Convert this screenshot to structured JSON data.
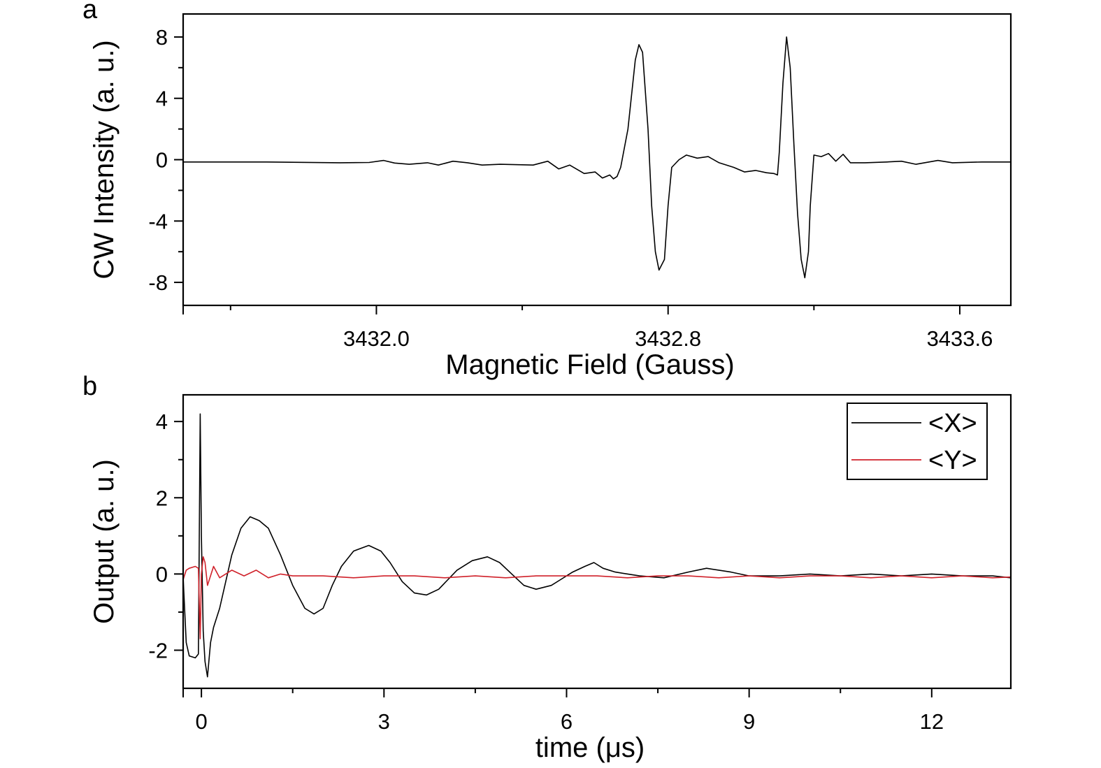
{
  "figure": {
    "panels": [
      "a",
      "b"
    ]
  },
  "chart_data": [
    {
      "panel": "a",
      "type": "line",
      "xlabel": "Magnetic Field (Gauss)",
      "ylabel": "CW Intensity (a. u.)",
      "xlim": [
        3431.47,
        3433.74
      ],
      "ylim": [
        -9.5,
        9.5
      ],
      "xticks": [
        3432.0,
        3432.8,
        3433.6
      ],
      "xtick_labels": [
        "3432.0",
        "3432.8",
        "3433.6"
      ],
      "xminor": [
        3431.6,
        3432.4,
        3433.2
      ],
      "yticks": [
        8,
        4,
        0,
        -4,
        -8
      ],
      "ytick_labels": [
        "8",
        "4",
        "0",
        "-4",
        "-8"
      ],
      "yminor": [
        6,
        2,
        -2,
        -6
      ],
      "grid": false,
      "series": [
        {
          "color": "#000000",
          "points": [
            [
              3431.47,
              -0.15
            ],
            [
              3431.7,
              -0.15
            ],
            [
              3431.9,
              -0.2
            ],
            [
              3431.98,
              -0.18
            ],
            [
              3432.02,
              -0.05
            ],
            [
              3432.05,
              -0.22
            ],
            [
              3432.09,
              -0.3
            ],
            [
              3432.14,
              -0.2
            ],
            [
              3432.17,
              -0.35
            ],
            [
              3432.21,
              -0.1
            ],
            [
              3432.25,
              -0.2
            ],
            [
              3432.29,
              -0.35
            ],
            [
              3432.34,
              -0.3
            ],
            [
              3432.43,
              -0.35
            ],
            [
              3432.47,
              -0.1
            ],
            [
              3432.5,
              -0.6
            ],
            [
              3432.53,
              -0.35
            ],
            [
              3432.57,
              -0.9
            ],
            [
              3432.6,
              -0.8
            ],
            [
              3432.62,
              -1.2
            ],
            [
              3432.64,
              -1.0
            ],
            [
              3432.65,
              -1.25
            ],
            [
              3432.66,
              -1.1
            ],
            [
              3432.67,
              -0.5
            ],
            [
              3432.69,
              2.0
            ],
            [
              3432.71,
              6.5
            ],
            [
              3432.72,
              7.5
            ],
            [
              3432.73,
              7.0
            ],
            [
              3432.745,
              2.0
            ],
            [
              3432.755,
              -3.0
            ],
            [
              3432.765,
              -6.0
            ],
            [
              3432.775,
              -7.2
            ],
            [
              3432.79,
              -6.5
            ],
            [
              3432.8,
              -3.0
            ],
            [
              3432.81,
              -0.5
            ],
            [
              3432.83,
              0.0
            ],
            [
              3432.85,
              0.3
            ],
            [
              3432.88,
              0.1
            ],
            [
              3432.91,
              0.2
            ],
            [
              3432.94,
              -0.2
            ],
            [
              3432.98,
              -0.5
            ],
            [
              3433.01,
              -0.8
            ],
            [
              3433.04,
              -0.7
            ],
            [
              3433.07,
              -0.85
            ],
            [
              3433.09,
              -0.9
            ],
            [
              3433.1,
              -1.0
            ],
            [
              3433.105,
              0.5
            ],
            [
              3433.115,
              5.0
            ],
            [
              3433.125,
              8.0
            ],
            [
              3433.135,
              6.0
            ],
            [
              3433.145,
              1.0
            ],
            [
              3433.155,
              -3.5
            ],
            [
              3433.165,
              -6.5
            ],
            [
              3433.175,
              -7.7
            ],
            [
              3433.185,
              -6.0
            ],
            [
              3433.19,
              -3.0
            ],
            [
              3433.2,
              0.3
            ],
            [
              3433.22,
              0.2
            ],
            [
              3433.24,
              0.4
            ],
            [
              3433.26,
              -0.1
            ],
            [
              3433.28,
              0.35
            ],
            [
              3433.3,
              -0.2
            ],
            [
              3433.34,
              -0.2
            ],
            [
              3433.4,
              -0.15
            ],
            [
              3433.44,
              -0.1
            ],
            [
              3433.48,
              -0.3
            ],
            [
              3433.54,
              -0.05
            ],
            [
              3433.58,
              -0.2
            ],
            [
              3433.66,
              -0.15
            ],
            [
              3433.74,
              -0.15
            ]
          ]
        }
      ]
    },
    {
      "panel": "b",
      "type": "line",
      "xlabel": "time (μs)",
      "ylabel": "Output (a. u.)",
      "xlim": [
        -0.3,
        13.3
      ],
      "ylim": [
        -3.0,
        4.7
      ],
      "xticks": [
        0,
        3,
        6,
        9,
        12
      ],
      "xtick_labels": [
        "0",
        "3",
        "6",
        "9",
        "12"
      ],
      "xminor": [
        1.5,
        4.5,
        7.5,
        10.5
      ],
      "yticks": [
        4,
        2,
        0,
        -2
      ],
      "ytick_labels": [
        "4",
        "2",
        "0",
        "-2"
      ],
      "yminor": [
        3,
        1,
        -1
      ],
      "grid": false,
      "legend": {
        "placement": "top-right"
      },
      "series": [
        {
          "name": "<X>",
          "color": "#000000",
          "points": [
            [
              -0.3,
              -0.1
            ],
            [
              -0.25,
              -1.8
            ],
            [
              -0.2,
              -2.15
            ],
            [
              -0.1,
              -2.2
            ],
            [
              -0.05,
              -2.1
            ],
            [
              -0.02,
              4.2
            ],
            [
              0.0,
              1.0
            ],
            [
              0.03,
              -1.5
            ],
            [
              0.06,
              -2.3
            ],
            [
              0.1,
              -2.7
            ],
            [
              0.15,
              -1.8
            ],
            [
              0.2,
              -1.4
            ],
            [
              0.3,
              -0.9
            ],
            [
              0.4,
              -0.2
            ],
            [
              0.5,
              0.5
            ],
            [
              0.65,
              1.2
            ],
            [
              0.8,
              1.5
            ],
            [
              0.95,
              1.4
            ],
            [
              1.1,
              1.2
            ],
            [
              1.3,
              0.5
            ],
            [
              1.5,
              -0.3
            ],
            [
              1.7,
              -0.9
            ],
            [
              1.85,
              -1.05
            ],
            [
              2.0,
              -0.9
            ],
            [
              2.15,
              -0.3
            ],
            [
              2.3,
              0.2
            ],
            [
              2.5,
              0.6
            ],
            [
              2.75,
              0.75
            ],
            [
              2.95,
              0.6
            ],
            [
              3.1,
              0.3
            ],
            [
              3.3,
              -0.2
            ],
            [
              3.5,
              -0.5
            ],
            [
              3.7,
              -0.55
            ],
            [
              3.9,
              -0.4
            ],
            [
              4.05,
              -0.15
            ],
            [
              4.2,
              0.1
            ],
            [
              4.45,
              0.35
            ],
            [
              4.7,
              0.45
            ],
            [
              4.9,
              0.3
            ],
            [
              5.1,
              0.0
            ],
            [
              5.3,
              -0.3
            ],
            [
              5.5,
              -0.4
            ],
            [
              5.75,
              -0.3
            ],
            [
              5.9,
              -0.15
            ],
            [
              6.1,
              0.05
            ],
            [
              6.3,
              0.2
            ],
            [
              6.45,
              0.3
            ],
            [
              6.6,
              0.15
            ],
            [
              6.8,
              0.05
            ],
            [
              7.2,
              -0.05
            ],
            [
              7.6,
              -0.1
            ],
            [
              8.0,
              0.05
            ],
            [
              8.3,
              0.15
            ],
            [
              8.7,
              0.05
            ],
            [
              9.0,
              -0.05
            ],
            [
              9.5,
              -0.05
            ],
            [
              10.0,
              0.0
            ],
            [
              10.5,
              -0.05
            ],
            [
              11.0,
              0.0
            ],
            [
              11.5,
              -0.05
            ],
            [
              12.0,
              0.0
            ],
            [
              12.5,
              -0.05
            ],
            [
              13.0,
              -0.05
            ],
            [
              13.3,
              -0.1
            ]
          ]
        },
        {
          "name": "<Y>",
          "color": "#d0212a",
          "points": [
            [
              -0.3,
              -0.15
            ],
            [
              -0.25,
              0.1
            ],
            [
              -0.2,
              0.15
            ],
            [
              -0.1,
              0.2
            ],
            [
              -0.05,
              0.15
            ],
            [
              -0.02,
              -1.7
            ],
            [
              0.0,
              0.0
            ],
            [
              0.03,
              0.45
            ],
            [
              0.06,
              0.3
            ],
            [
              0.1,
              -0.3
            ],
            [
              0.2,
              0.2
            ],
            [
              0.3,
              -0.1
            ],
            [
              0.5,
              0.1
            ],
            [
              0.7,
              -0.05
            ],
            [
              0.9,
              0.1
            ],
            [
              1.1,
              -0.1
            ],
            [
              1.3,
              0.0
            ],
            [
              1.5,
              -0.05
            ],
            [
              2.0,
              -0.05
            ],
            [
              2.5,
              -0.1
            ],
            [
              3.0,
              -0.05
            ],
            [
              3.5,
              -0.05
            ],
            [
              4.0,
              -0.1
            ],
            [
              4.5,
              -0.05
            ],
            [
              5.0,
              -0.1
            ],
            [
              5.5,
              -0.05
            ],
            [
              6.0,
              -0.05
            ],
            [
              6.5,
              -0.05
            ],
            [
              7.0,
              -0.1
            ],
            [
              7.5,
              -0.05
            ],
            [
              8.0,
              -0.05
            ],
            [
              8.5,
              -0.1
            ],
            [
              9.0,
              -0.05
            ],
            [
              9.5,
              -0.1
            ],
            [
              10.0,
              -0.05
            ],
            [
              10.5,
              -0.05
            ],
            [
              11.0,
              -0.1
            ],
            [
              11.5,
              -0.05
            ],
            [
              12.0,
              -0.1
            ],
            [
              12.5,
              -0.05
            ],
            [
              13.0,
              -0.1
            ],
            [
              13.3,
              -0.08
            ]
          ]
        }
      ]
    }
  ]
}
